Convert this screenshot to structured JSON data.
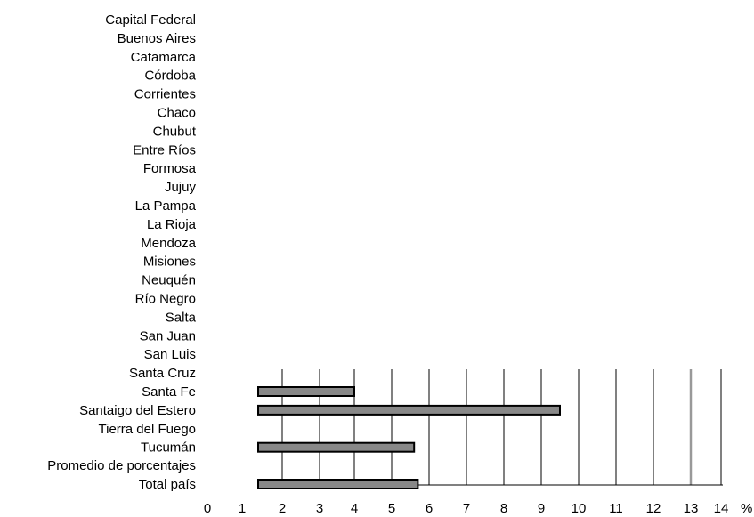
{
  "chart_data": {
    "type": "bar",
    "orientation": "horizontal",
    "categories": [
      "Capital Federal",
      "Buenos Aires",
      "Catamarca",
      "Córdoba",
      "Corrientes",
      "Chaco",
      "Chubut",
      "Entre Ríos",
      "Formosa",
      "Jujuy",
      "La Pampa",
      "La Rioja",
      "Mendoza",
      "Misiones",
      "Neuquén",
      "Río Negro",
      "Salta",
      "San Juan",
      "San Luis",
      "Santa Cruz",
      "Santa Fe",
      "Santaigo del Estero",
      "Tierra del Fuego",
      "Tucumán",
      "Promedio de porcentajes",
      "Total país"
    ],
    "values": [
      null,
      null,
      null,
      null,
      null,
      null,
      null,
      null,
      null,
      null,
      null,
      null,
      null,
      null,
      null,
      null,
      null,
      null,
      null,
      null,
      4.0,
      9.5,
      null,
      5.6,
      null,
      5.7
    ],
    "x_ticks": [
      "0",
      "1",
      "2",
      "3",
      "4",
      "5",
      "6",
      "7",
      "8",
      "9",
      "10",
      "11",
      "12",
      "13",
      "14"
    ],
    "x_unit": "%",
    "reference_line": 13.0,
    "xlim": [
      0,
      14
    ],
    "grid": "vertical",
    "bar_color": "#888888"
  }
}
